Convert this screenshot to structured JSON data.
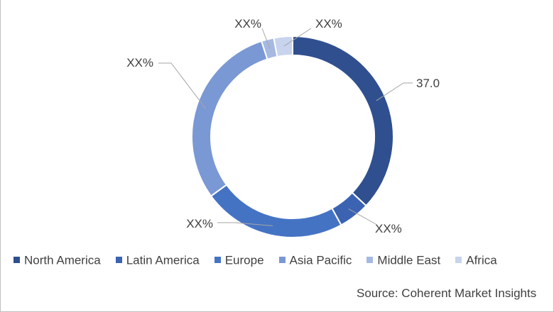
{
  "chart_data": {
    "type": "pie",
    "style": "donut",
    "title": "",
    "categories": [
      "North America",
      "Latin America",
      "Europe",
      "Asia Pacific",
      "Middle East",
      "Africa"
    ],
    "values": [
      37.0,
      5.0,
      23.0,
      30.0,
      2.0,
      3.0
    ],
    "data_labels": [
      "37.0",
      "XX%",
      "XX%",
      "XX%",
      "XX%",
      "XX%"
    ],
    "colors": [
      "#2f4f8f",
      "#3b63b2",
      "#4573c4",
      "#7a98d4",
      "#a6b9e3",
      "#c8d4ee"
    ],
    "legend": "bottom"
  },
  "source": "Source: Coherent Market Insights"
}
